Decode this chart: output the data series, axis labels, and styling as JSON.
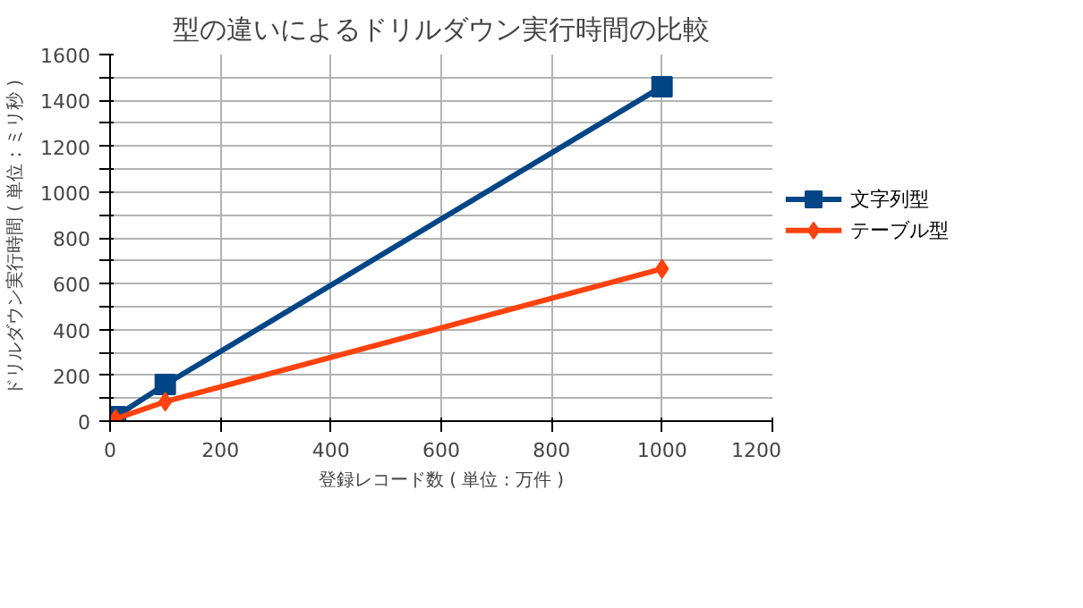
{
  "chart_data": {
    "type": "line",
    "title": "型の違いによるドリルダウン実行時間の比較",
    "xlabel": "登録レコード数 ( 単位 : 万件 )",
    "ylabel": "ドリルダウン実行時間 ( 単位 : ミリ秒 )",
    "x": [
      10,
      100,
      1000
    ],
    "series": [
      {
        "name": "文字列型",
        "color": "#004586",
        "values": [
          20,
          160,
          1460
        ],
        "marker": "square"
      },
      {
        "name": "テーブル型",
        "color": "#ff420e",
        "values": [
          10,
          85,
          665
        ],
        "marker": "diamond"
      }
    ],
    "xlim": [
      0,
      1200
    ],
    "xticks": [
      0,
      200,
      400,
      600,
      800,
      1000,
      1200
    ],
    "ylim": [
      0,
      1600
    ],
    "yticks": [
      0,
      {
        "value": 100,
        "label": null
      },
      200,
      {
        "value": 300,
        "label": null
      },
      400,
      {
        "value": 500,
        "label": null
      },
      600,
      {
        "value": 700,
        "label": null
      },
      800,
      {
        "value": 900,
        "label": null
      },
      1000,
      {
        "value": 1100,
        "label": null
      },
      1200,
      {
        "value": 1300,
        "label": null
      },
      1400,
      {
        "value": 1500,
        "label": null
      },
      1600
    ],
    "grid": true,
    "legend": "right",
    "line_style": "solid"
  }
}
